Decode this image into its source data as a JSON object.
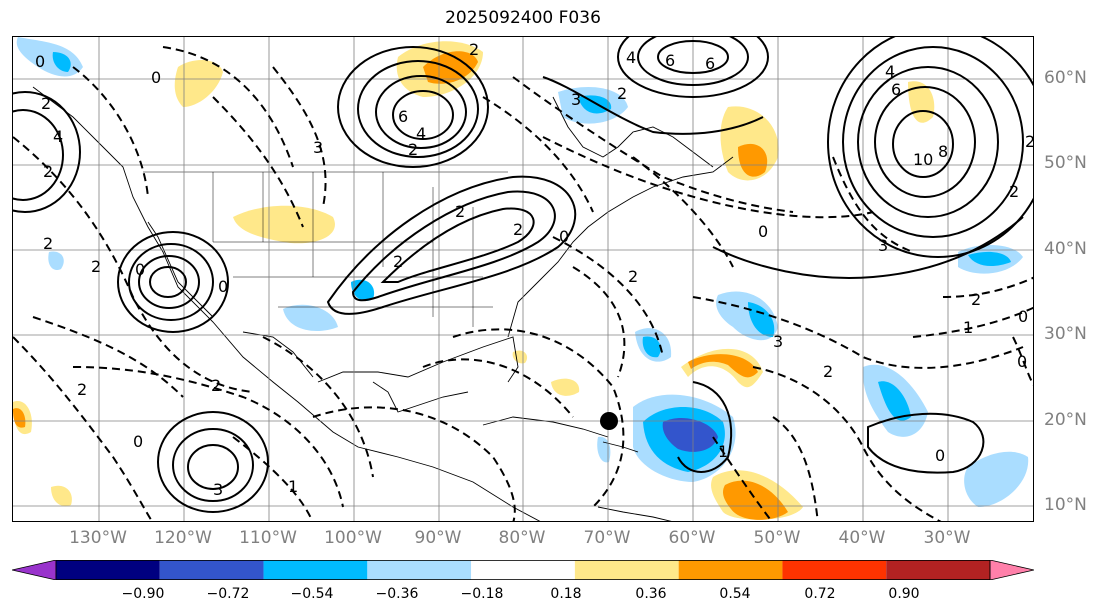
{
  "title": "2025092400 F036",
  "lat_labels": [
    "60°N",
    "50°N",
    "40°N",
    "30°N",
    "20°N",
    "10°N"
  ],
  "lon_labels": [
    "130°W",
    "120°W",
    "110°W",
    "100°W",
    "90°W",
    "80°W",
    "70°W",
    "60°W",
    "50°W",
    "40°W",
    "30°W"
  ],
  "colorbar": {
    "ticks": [
      "−0.90",
      "−0.72",
      "−0.54",
      "−0.36",
      "−0.18",
      "0.18",
      "0.36",
      "0.54",
      "0.72",
      "0.90"
    ],
    "colors": [
      "#9933cc",
      "#000080",
      "#3355cc",
      "#00bbff",
      "#aaddff",
      "#ffffff",
      "#ffe88a",
      "#ff9900",
      "#ff3300",
      "#b22222",
      "#ff80aa"
    ]
  },
  "contour_labels": [
    "0",
    "2",
    "4",
    "6",
    "6",
    "2",
    "4",
    "0",
    "3",
    "2",
    "6",
    "4",
    "2",
    "8",
    "10",
    "4",
    "6",
    "3",
    "0",
    "2",
    "3",
    "2",
    "2",
    "0",
    "2",
    "0",
    "2",
    "2",
    "2",
    "2",
    "2",
    "1",
    "2",
    "0",
    "0",
    "3",
    "1",
    "3",
    "2",
    "0",
    "1",
    "0",
    "2",
    "0",
    "2"
  ],
  "marker": "storm-position-dot"
}
